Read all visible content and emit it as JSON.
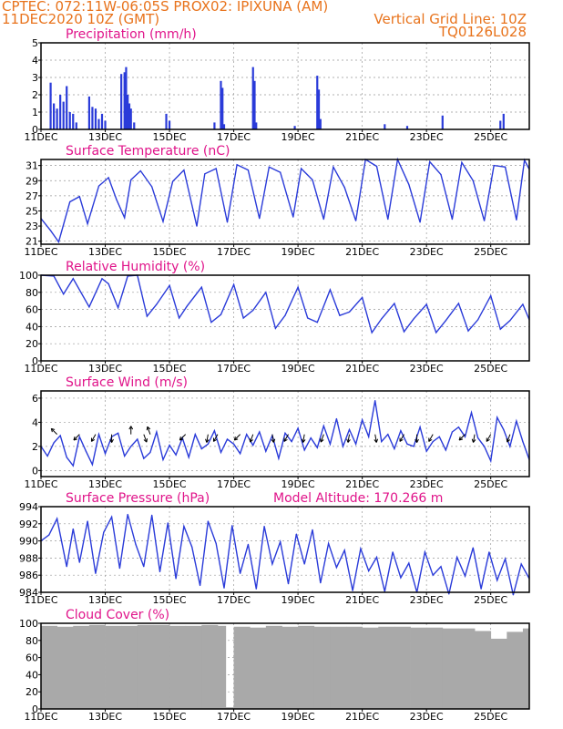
{
  "header": {
    "left1": "CPTEC:   072:11W-06:05S   PROX02: IPIXUNA (AM)",
    "left2": "11DEC2020 10Z (GMT)",
    "right1": "Vertical Grid Line: 10Z",
    "right2": "TQ0126L028"
  },
  "x_tick_labels": [
    "11DEC",
    "13DEC",
    "15DEC",
    "17DEC",
    "19DEC",
    "21DEC",
    "23DEC",
    "25DEC"
  ],
  "x_tick_days": [
    11,
    13,
    15,
    17,
    19,
    21,
    23,
    25
  ],
  "x_range_days": [
    11,
    26.2
  ],
  "colors": {
    "header": "#e8731c",
    "title": "#e0148a",
    "series": "#2a3bd9",
    "cloud": "#a9a9a9"
  },
  "chart_data": [
    {
      "type": "bar",
      "title": "Precipitation (mm/h)",
      "ylim": [
        0,
        5
      ],
      "yticks": [
        0,
        1,
        2,
        3,
        4,
        5
      ],
      "x_day": [
        11.3,
        11.4,
        11.5,
        11.6,
        11.7,
        11.8,
        11.9,
        12.0,
        12.1,
        12.5,
        12.6,
        12.7,
        12.8,
        12.9,
        13.0,
        13.5,
        13.6,
        13.65,
        13.7,
        13.75,
        13.8,
        13.9,
        14.9,
        15.0,
        16.4,
        16.6,
        16.65,
        16.7,
        17.6,
        17.65,
        17.7,
        18.9,
        19.6,
        19.65,
        19.7,
        21.7,
        22.4,
        23.5,
        25.3,
        25.4
      ],
      "values": [
        2.7,
        1.5,
        1.2,
        2.0,
        1.6,
        2.5,
        1.0,
        0.9,
        0.4,
        1.9,
        1.3,
        1.2,
        0.6,
        0.9,
        0.5,
        3.2,
        3.3,
        3.6,
        2.0,
        1.5,
        1.2,
        0.4,
        0.9,
        0.5,
        0.4,
        2.8,
        2.4,
        0.3,
        3.6,
        2.8,
        0.4,
        0.2,
        3.1,
        2.3,
        0.6,
        0.3,
        0.2,
        0.8,
        0.5,
        0.9
      ]
    },
    {
      "type": "line",
      "title": "Surface Temperature (nC)",
      "ylim": [
        20.6,
        31.8
      ],
      "yticks": [
        21,
        23,
        25,
        27,
        29,
        31
      ],
      "x_day": [
        11.0,
        11.3,
        11.55,
        11.9,
        12.2,
        12.45,
        12.8,
        13.1,
        13.35,
        13.6,
        13.8,
        14.1,
        14.45,
        14.8,
        15.1,
        15.45,
        15.85,
        16.1,
        16.45,
        16.8,
        17.1,
        17.45,
        17.8,
        18.1,
        18.45,
        18.85,
        19.1,
        19.45,
        19.8,
        20.1,
        20.45,
        20.8,
        21.1,
        21.45,
        21.8,
        22.1,
        22.45,
        22.8,
        23.1,
        23.45,
        23.8,
        24.1,
        24.45,
        24.8,
        25.1,
        25.45,
        25.8,
        26.05,
        26.2
      ],
      "values": [
        24.0,
        22.4,
        20.9,
        26.2,
        26.9,
        23.3,
        28.3,
        29.4,
        26.5,
        24.1,
        29.1,
        30.3,
        28.2,
        23.6,
        28.9,
        30.4,
        23.0,
        29.9,
        30.6,
        23.5,
        31.1,
        30.4,
        24.0,
        30.8,
        30.1,
        24.2,
        30.6,
        29.1,
        23.9,
        30.8,
        28.1,
        23.7,
        31.8,
        30.9,
        23.9,
        31.8,
        28.5,
        23.5,
        31.5,
        29.8,
        23.9,
        31.4,
        29.0,
        23.7,
        31.0,
        30.8,
        23.8,
        31.7,
        30.5
      ]
    },
    {
      "type": "line",
      "title": "Relative Humidity (%)",
      "ylim": [
        0,
        100
      ],
      "yticks": [
        0,
        20,
        40,
        60,
        80,
        100
      ],
      "x_day": [
        11.0,
        11.4,
        11.7,
        12.0,
        12.5,
        12.9,
        13.1,
        13.4,
        13.7,
        14.0,
        14.3,
        14.6,
        15.0,
        15.3,
        15.55,
        16.0,
        16.3,
        16.6,
        17.0,
        17.3,
        17.6,
        18.0,
        18.3,
        18.6,
        19.0,
        19.3,
        19.6,
        20.0,
        20.3,
        20.6,
        21.0,
        21.3,
        21.6,
        22.0,
        22.3,
        22.6,
        23.0,
        23.3,
        23.6,
        24.0,
        24.3,
        24.6,
        25.0,
        25.3,
        25.6,
        26.0,
        26.2
      ],
      "values": [
        100,
        99,
        78,
        96,
        63,
        96,
        90,
        62,
        99,
        100,
        52,
        66,
        88,
        50,
        64,
        86,
        45,
        54,
        89,
        50,
        59,
        80,
        38,
        53,
        86,
        50,
        45,
        83,
        53,
        57,
        74,
        33,
        49,
        67,
        34,
        49,
        66,
        33,
        47,
        67,
        35,
        48,
        76,
        37,
        47,
        66,
        48
      ]
    },
    {
      "type": "line",
      "title": "Surface Wind (m/s)",
      "ylim": [
        -0.5,
        6.6
      ],
      "yticks": [
        0,
        2,
        4,
        6
      ],
      "arrows_note": "",
      "x_day": [
        11.0,
        11.2,
        11.4,
        11.6,
        11.8,
        12.0,
        12.2,
        12.4,
        12.6,
        12.8,
        13.0,
        13.2,
        13.4,
        13.6,
        13.8,
        14.0,
        14.2,
        14.4,
        14.6,
        14.8,
        15.0,
        15.2,
        15.4,
        15.6,
        15.8,
        16.0,
        16.2,
        16.4,
        16.6,
        16.8,
        17.0,
        17.2,
        17.4,
        17.6,
        17.8,
        18.0,
        18.2,
        18.4,
        18.6,
        18.8,
        19.0,
        19.2,
        19.4,
        19.6,
        19.8,
        20.0,
        20.2,
        20.4,
        20.6,
        20.8,
        21.0,
        21.2,
        21.4,
        21.6,
        21.8,
        22.0,
        22.2,
        22.4,
        22.6,
        22.8,
        23.0,
        23.2,
        23.4,
        23.6,
        23.8,
        24.0,
        24.2,
        24.4,
        24.6,
        24.8,
        25.0,
        25.2,
        25.4,
        25.6,
        25.8,
        26.0,
        26.2
      ],
      "values": [
        2.0,
        1.2,
        2.3,
        2.9,
        1.1,
        0.4,
        2.8,
        1.6,
        0.5,
        3.0,
        1.4,
        2.8,
        3.1,
        1.2,
        2.0,
        2.6,
        1.0,
        1.5,
        3.2,
        0.9,
        2.1,
        1.3,
        2.7,
        1.1,
        3.0,
        1.8,
        2.2,
        3.3,
        1.5,
        2.6,
        2.2,
        1.4,
        3.0,
        2.1,
        3.2,
        1.6,
        2.9,
        1.0,
        3.1,
        2.4,
        3.5,
        1.7,
        2.7,
        1.9,
        3.7,
        2.2,
        4.3,
        2.0,
        3.4,
        2.2,
        4.2,
        2.8,
        5.8,
        2.4,
        3.0,
        1.8,
        3.3,
        2.2,
        2.0,
        3.6,
        1.6,
        2.4,
        2.8,
        1.7,
        3.2,
        3.6,
        2.8,
        4.8,
        2.7,
        2.0,
        0.8,
        4.4,
        3.4,
        2.0,
        4.1,
        2.4,
        0.9
      ]
    },
    {
      "type": "line",
      "title": "Surface Pressure (hPa)",
      "annotation": "Model Altitude: 170.266  m",
      "ylim": [
        984,
        994
      ],
      "yticks": [
        984,
        986,
        988,
        990,
        992,
        994
      ],
      "x_day": [
        11.0,
        11.25,
        11.5,
        11.8,
        12.0,
        12.2,
        12.45,
        12.7,
        12.95,
        13.2,
        13.45,
        13.7,
        13.95,
        14.2,
        14.45,
        14.7,
        14.95,
        15.2,
        15.45,
        15.7,
        15.95,
        16.2,
        16.45,
        16.7,
        16.95,
        17.2,
        17.45,
        17.7,
        17.95,
        18.2,
        18.45,
        18.7,
        18.95,
        19.2,
        19.45,
        19.7,
        19.95,
        20.2,
        20.45,
        20.7,
        20.95,
        21.2,
        21.45,
        21.7,
        21.95,
        22.2,
        22.45,
        22.7,
        22.95,
        23.2,
        23.45,
        23.7,
        23.95,
        24.2,
        24.45,
        24.7,
        24.95,
        25.2,
        25.45,
        25.7,
        25.95,
        26.2
      ],
      "values": [
        990.0,
        990.7,
        992.6,
        987.0,
        991.4,
        987.5,
        992.3,
        986.2,
        991.0,
        992.8,
        986.8,
        993.1,
        989.6,
        987.0,
        993.0,
        986.4,
        992.1,
        985.6,
        991.7,
        989.3,
        984.8,
        992.3,
        989.7,
        984.5,
        991.8,
        986.2,
        989.6,
        984.4,
        991.7,
        987.3,
        989.9,
        985.0,
        990.8,
        987.3,
        991.3,
        985.1,
        989.7,
        986.9,
        988.9,
        984.2,
        989.1,
        986.5,
        988.1,
        984.1,
        988.7,
        985.7,
        987.4,
        984.0,
        988.7,
        986.0,
        987.0,
        983.8,
        988.1,
        985.9,
        989.2,
        984.4,
        988.7,
        985.4,
        987.9,
        983.7,
        987.3,
        985.6
      ]
    },
    {
      "type": "bar",
      "title": "Cloud Cover (%)",
      "ylim": [
        0,
        100
      ],
      "yticks": [
        0,
        20,
        40,
        60,
        80,
        100
      ],
      "x_day": [
        11.0,
        11.5,
        12.0,
        12.5,
        13.0,
        13.5,
        14.0,
        14.5,
        15.0,
        15.5,
        16.0,
        16.5,
        16.75,
        17.0,
        17.5,
        18.0,
        18.5,
        19.0,
        19.5,
        20.0,
        20.5,
        21.0,
        21.5,
        22.0,
        22.5,
        23.0,
        23.5,
        24.0,
        24.5,
        25.0,
        25.5,
        26.0
      ],
      "values": [
        97,
        96,
        97,
        98,
        97,
        97,
        98,
        98,
        97,
        97,
        98,
        97,
        2,
        96,
        95,
        97,
        96,
        97,
        96,
        96,
        96,
        95,
        96,
        96,
        95,
        95,
        94,
        94,
        91,
        82,
        90,
        94
      ]
    }
  ]
}
